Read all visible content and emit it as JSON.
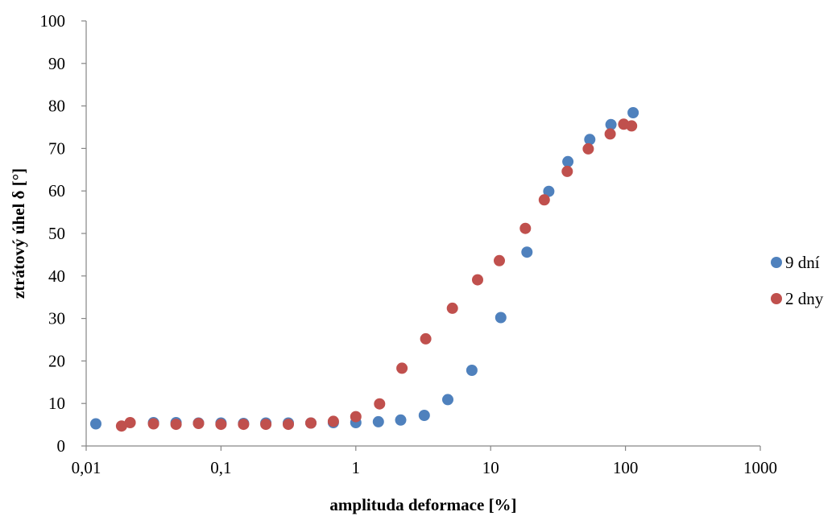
{
  "chart_data": {
    "type": "scatter",
    "xlabel": "amplituda deformace [%]",
    "ylabel": "ztrátový úhel δ [°]",
    "xscale": "log",
    "xlim": [
      0.01,
      1000
    ],
    "ylim": [
      0,
      100
    ],
    "x_ticks": [
      0.01,
      0.1,
      1,
      10,
      100,
      1000
    ],
    "x_tick_labels": [
      "0,01",
      "0,1",
      "1",
      "10",
      "100",
      "1000"
    ],
    "y_ticks": [
      0,
      10,
      20,
      30,
      40,
      50,
      60,
      70,
      80,
      90,
      100
    ],
    "y_tick_labels": [
      "0",
      "10",
      "20",
      "30",
      "40",
      "50",
      "60",
      "70",
      "80",
      "90",
      "100"
    ],
    "grid": false,
    "legend_position": "right",
    "series": [
      {
        "name": "9 dní",
        "color": "#4f81bd",
        "points": [
          [
            0.0118,
            5.2
          ],
          [
            0.0316,
            5.5
          ],
          [
            0.0464,
            5.5
          ],
          [
            0.0681,
            5.4
          ],
          [
            0.1,
            5.4
          ],
          [
            0.147,
            5.3
          ],
          [
            0.215,
            5.4
          ],
          [
            0.316,
            5.4
          ],
          [
            0.464,
            5.4
          ],
          [
            0.681,
            5.5
          ],
          [
            1.0,
            5.5
          ],
          [
            1.47,
            5.7
          ],
          [
            2.15,
            6.1
          ],
          [
            3.22,
            7.2
          ],
          [
            4.81,
            10.9
          ],
          [
            7.26,
            17.8
          ],
          [
            11.9,
            30.2
          ],
          [
            18.6,
            45.6
          ],
          [
            27.0,
            59.9
          ],
          [
            37.4,
            66.9
          ],
          [
            54.4,
            72.1
          ],
          [
            78.1,
            75.6
          ],
          [
            114.0,
            78.4
          ]
        ]
      },
      {
        "name": "2 dny",
        "color": "#c0504d",
        "points": [
          [
            0.0183,
            4.7
          ],
          [
            0.0212,
            5.5
          ],
          [
            0.0316,
            5.2
          ],
          [
            0.0464,
            5.1
          ],
          [
            0.0681,
            5.3
          ],
          [
            0.1,
            5.1
          ],
          [
            0.147,
            5.1
          ],
          [
            0.215,
            5.1
          ],
          [
            0.316,
            5.1
          ],
          [
            0.464,
            5.4
          ],
          [
            0.681,
            5.8
          ],
          [
            1.0,
            6.9
          ],
          [
            1.5,
            9.9
          ],
          [
            2.2,
            18.3
          ],
          [
            3.3,
            25.2
          ],
          [
            5.2,
            32.4
          ],
          [
            8.0,
            39.1
          ],
          [
            11.6,
            43.6
          ],
          [
            18.1,
            51.2
          ],
          [
            25.0,
            57.9
          ],
          [
            37.0,
            64.6
          ],
          [
            53.0,
            69.9
          ],
          [
            77.0,
            73.4
          ],
          [
            97.0,
            75.7
          ],
          [
            111.0,
            75.3
          ]
        ]
      }
    ]
  }
}
